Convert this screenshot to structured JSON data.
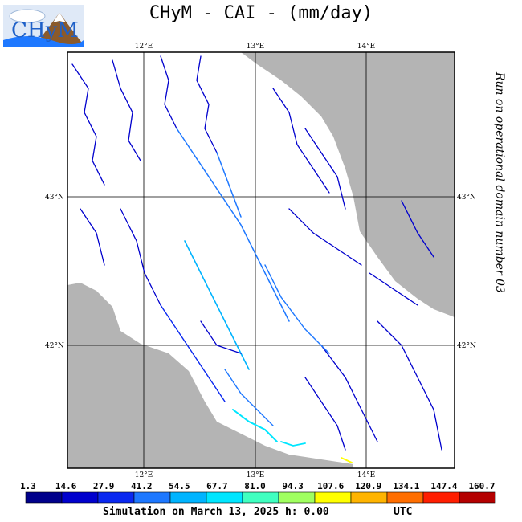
{
  "title": "CHyM - CAI - (mm/day)",
  "logo_text": "CHyM",
  "side_note": "Run on operational domain number 03",
  "footer": {
    "simulation": "Simulation on March 13, 2025 h: 0.00",
    "utc": "UTC"
  },
  "map": {
    "lon_labels": [
      "12°E",
      "13°E",
      "14°E"
    ],
    "lat_labels": [
      "43°N",
      "42°N"
    ],
    "land_color": "#ffffff",
    "sea_color": "#b4b4b4"
  },
  "colorbar": {
    "ticks": [
      "1.3",
      "14.6",
      "27.9",
      "41.2",
      "54.5",
      "67.7",
      "81.0",
      "94.3",
      "107.6",
      "120.9",
      "134.1",
      "147.4",
      "160.7"
    ],
    "colors": [
      "#00008b",
      "#0000cd",
      "#0a28f0",
      "#1e78ff",
      "#00b4ff",
      "#00e6ff",
      "#40ffc0",
      "#a0ff60",
      "#ffff00",
      "#ffb400",
      "#ff6e00",
      "#ff1e00",
      "#b40000"
    ]
  }
}
